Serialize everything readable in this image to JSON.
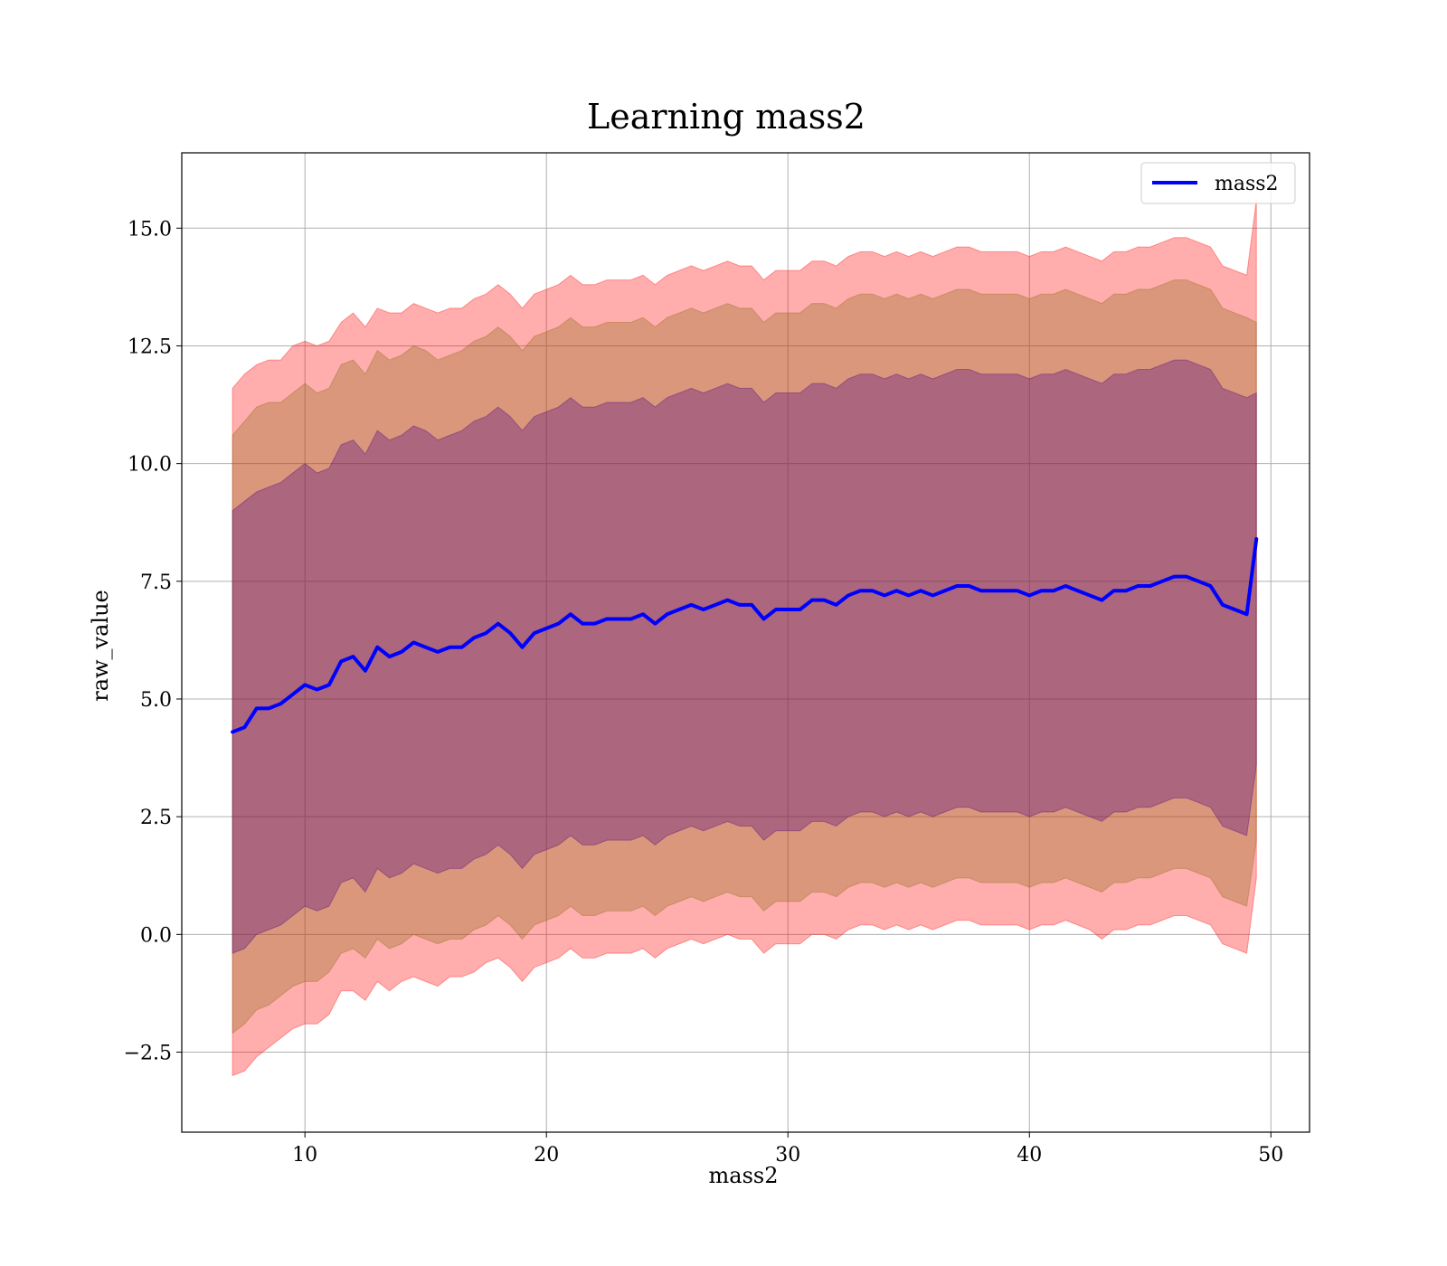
{
  "chart_data": {
    "type": "line",
    "title": "Learning mass2",
    "xlabel": "mass2",
    "ylabel": "raw_value",
    "xlim": [
      4.9,
      51.6
    ],
    "ylim": [
      -4.2,
      16.6
    ],
    "xticks": [
      10,
      20,
      30,
      40,
      50
    ],
    "xtick_labels": [
      "10",
      "20",
      "30",
      "40",
      "50"
    ],
    "yticks": [
      -2.5,
      0.0,
      2.5,
      5.0,
      7.5,
      10.0,
      12.5,
      15.0
    ],
    "ytick_labels": [
      "−2.5",
      "0.0",
      "2.5",
      "5.0",
      "7.5",
      "10.0",
      "12.5",
      "15.0"
    ],
    "grid": true,
    "legend": {
      "position": "top-right",
      "entries": [
        "mass2"
      ]
    },
    "series": [
      {
        "name": "mass2",
        "color": "#0000ff",
        "x": [
          7.0,
          7.5,
          8.0,
          8.5,
          9.0,
          9.5,
          10.0,
          10.5,
          11.0,
          11.5,
          12.0,
          12.5,
          13.0,
          13.5,
          14.0,
          14.5,
          15.0,
          15.5,
          16.0,
          16.5,
          17.0,
          17.5,
          18.0,
          18.5,
          19.0,
          19.5,
          20.0,
          20.5,
          21.0,
          21.5,
          22.0,
          22.5,
          23.0,
          23.5,
          24.0,
          24.5,
          25.0,
          25.5,
          26.0,
          26.5,
          27.0,
          27.5,
          28.0,
          28.5,
          29.0,
          29.5,
          30.0,
          30.5,
          31.0,
          31.5,
          32.0,
          32.5,
          33.0,
          33.5,
          34.0,
          34.5,
          35.0,
          35.5,
          36.0,
          36.5,
          37.0,
          37.5,
          38.0,
          38.5,
          39.0,
          39.5,
          40.0,
          40.5,
          41.0,
          41.5,
          42.0,
          42.5,
          43.0,
          43.5,
          44.0,
          44.5,
          45.0,
          45.5,
          46.0,
          46.5,
          47.0,
          47.5,
          48.0,
          48.5,
          49.0,
          49.4
        ],
        "y": [
          4.3,
          4.4,
          4.8,
          4.8,
          4.9,
          5.1,
          5.3,
          5.2,
          5.3,
          5.8,
          5.9,
          5.6,
          6.1,
          5.9,
          6.0,
          6.2,
          6.1,
          6.0,
          6.1,
          6.1,
          6.3,
          6.4,
          6.6,
          6.4,
          6.1,
          6.4,
          6.5,
          6.6,
          6.8,
          6.6,
          6.6,
          6.7,
          6.7,
          6.7,
          6.8,
          6.6,
          6.8,
          6.9,
          7.0,
          6.9,
          7.0,
          7.1,
          7.0,
          7.0,
          6.7,
          6.9,
          6.9,
          6.9,
          7.1,
          7.1,
          7.0,
          7.2,
          7.3,
          7.3,
          7.2,
          7.3,
          7.2,
          7.3,
          7.2,
          7.3,
          7.4,
          7.4,
          7.3,
          7.3,
          7.3,
          7.3,
          7.2,
          7.3,
          7.3,
          7.4,
          7.3,
          7.2,
          7.1,
          7.3,
          7.3,
          7.4,
          7.4,
          7.5,
          7.6,
          7.6,
          7.5,
          7.4,
          7.0,
          6.9,
          6.8,
          8.4
        ],
        "band_outer_upper": [
          11.6,
          11.9,
          12.1,
          12.2,
          12.2,
          12.5,
          12.6,
          12.5,
          12.6,
          13.0,
          13.2,
          12.9,
          13.3,
          13.2,
          13.2,
          13.4,
          13.3,
          13.2,
          13.3,
          13.3,
          13.5,
          13.6,
          13.8,
          13.6,
          13.3,
          13.6,
          13.7,
          13.8,
          14.0,
          13.8,
          13.8,
          13.9,
          13.9,
          13.9,
          14.0,
          13.8,
          14.0,
          14.1,
          14.2,
          14.1,
          14.2,
          14.3,
          14.2,
          14.2,
          13.9,
          14.1,
          14.1,
          14.1,
          14.3,
          14.3,
          14.2,
          14.4,
          14.5,
          14.5,
          14.4,
          14.5,
          14.4,
          14.5,
          14.4,
          14.5,
          14.6,
          14.6,
          14.5,
          14.5,
          14.5,
          14.5,
          14.4,
          14.5,
          14.5,
          14.6,
          14.5,
          14.4,
          14.3,
          14.5,
          14.5,
          14.6,
          14.6,
          14.7,
          14.8,
          14.8,
          14.7,
          14.6,
          14.2,
          14.1,
          14.0,
          15.6
        ],
        "band_outer_lower": [
          -3.0,
          -2.9,
          -2.6,
          -2.4,
          -2.2,
          -2.0,
          -1.9,
          -1.9,
          -1.7,
          -1.2,
          -1.2,
          -1.4,
          -1.0,
          -1.2,
          -1.0,
          -0.9,
          -1.0,
          -1.1,
          -0.9,
          -0.9,
          -0.8,
          -0.6,
          -0.5,
          -0.7,
          -1.0,
          -0.7,
          -0.6,
          -0.5,
          -0.3,
          -0.5,
          -0.5,
          -0.4,
          -0.4,
          -0.4,
          -0.3,
          -0.5,
          -0.3,
          -0.2,
          -0.1,
          -0.2,
          -0.1,
          0.0,
          -0.1,
          -0.1,
          -0.4,
          -0.2,
          -0.2,
          -0.2,
          0.0,
          0.0,
          -0.1,
          0.1,
          0.2,
          0.2,
          0.1,
          0.2,
          0.1,
          0.2,
          0.1,
          0.2,
          0.3,
          0.3,
          0.2,
          0.2,
          0.2,
          0.2,
          0.1,
          0.2,
          0.2,
          0.3,
          0.2,
          0.1,
          -0.1,
          0.1,
          0.1,
          0.2,
          0.2,
          0.3,
          0.4,
          0.4,
          0.3,
          0.2,
          -0.2,
          -0.3,
          -0.4,
          1.2
        ],
        "band_mid_upper": [
          10.6,
          10.9,
          11.2,
          11.3,
          11.3,
          11.5,
          11.7,
          11.5,
          11.6,
          12.1,
          12.2,
          11.9,
          12.4,
          12.2,
          12.3,
          12.5,
          12.4,
          12.2,
          12.3,
          12.4,
          12.6,
          12.7,
          12.9,
          12.7,
          12.4,
          12.7,
          12.8,
          12.9,
          13.1,
          12.9,
          12.9,
          13.0,
          13.0,
          13.0,
          13.1,
          12.9,
          13.1,
          13.2,
          13.3,
          13.2,
          13.3,
          13.4,
          13.3,
          13.3,
          13.0,
          13.2,
          13.2,
          13.2,
          13.4,
          13.4,
          13.3,
          13.5,
          13.6,
          13.6,
          13.5,
          13.6,
          13.5,
          13.6,
          13.5,
          13.6,
          13.7,
          13.7,
          13.6,
          13.6,
          13.6,
          13.6,
          13.5,
          13.6,
          13.6,
          13.7,
          13.6,
          13.5,
          13.4,
          13.6,
          13.6,
          13.7,
          13.7,
          13.8,
          13.9,
          13.9,
          13.8,
          13.7,
          13.3,
          13.2,
          13.1,
          13.0
        ],
        "band_mid_lower": [
          -2.1,
          -1.9,
          -1.6,
          -1.5,
          -1.3,
          -1.1,
          -1.0,
          -1.0,
          -0.8,
          -0.4,
          -0.3,
          -0.5,
          -0.1,
          -0.3,
          -0.2,
          0.0,
          -0.1,
          -0.2,
          -0.1,
          -0.1,
          0.1,
          0.2,
          0.4,
          0.2,
          -0.1,
          0.2,
          0.3,
          0.4,
          0.6,
          0.4,
          0.4,
          0.5,
          0.5,
          0.5,
          0.6,
          0.4,
          0.6,
          0.7,
          0.8,
          0.7,
          0.8,
          0.9,
          0.8,
          0.8,
          0.5,
          0.7,
          0.7,
          0.7,
          0.9,
          0.9,
          0.8,
          1.0,
          1.1,
          1.1,
          1.0,
          1.1,
          1.0,
          1.1,
          1.0,
          1.1,
          1.2,
          1.2,
          1.1,
          1.1,
          1.1,
          1.1,
          1.0,
          1.1,
          1.1,
          1.2,
          1.1,
          1.0,
          0.9,
          1.1,
          1.1,
          1.2,
          1.2,
          1.3,
          1.4,
          1.4,
          1.3,
          1.2,
          0.8,
          0.7,
          0.6,
          2.0
        ],
        "band_inner_upper": [
          9.0,
          9.2,
          9.4,
          9.5,
          9.6,
          9.8,
          10.0,
          9.8,
          9.9,
          10.4,
          10.5,
          10.2,
          10.7,
          10.5,
          10.6,
          10.8,
          10.7,
          10.5,
          10.6,
          10.7,
          10.9,
          11.0,
          11.2,
          11.0,
          10.7,
          11.0,
          11.1,
          11.2,
          11.4,
          11.2,
          11.2,
          11.3,
          11.3,
          11.3,
          11.4,
          11.2,
          11.4,
          11.5,
          11.6,
          11.5,
          11.6,
          11.7,
          11.6,
          11.6,
          11.3,
          11.5,
          11.5,
          11.5,
          11.7,
          11.7,
          11.6,
          11.8,
          11.9,
          11.9,
          11.8,
          11.9,
          11.8,
          11.9,
          11.8,
          11.9,
          12.0,
          12.0,
          11.9,
          11.9,
          11.9,
          11.9,
          11.8,
          11.9,
          11.9,
          12.0,
          11.9,
          11.8,
          11.7,
          11.9,
          11.9,
          12.0,
          12.0,
          12.1,
          12.2,
          12.2,
          12.1,
          12.0,
          11.6,
          11.5,
          11.4,
          11.5
        ],
        "band_inner_lower": [
          -0.4,
          -0.3,
          0.0,
          0.1,
          0.2,
          0.4,
          0.6,
          0.5,
          0.6,
          1.1,
          1.2,
          0.9,
          1.4,
          1.2,
          1.3,
          1.5,
          1.4,
          1.3,
          1.4,
          1.4,
          1.6,
          1.7,
          1.9,
          1.7,
          1.4,
          1.7,
          1.8,
          1.9,
          2.1,
          1.9,
          1.9,
          2.0,
          2.0,
          2.0,
          2.1,
          1.9,
          2.1,
          2.2,
          2.3,
          2.2,
          2.3,
          2.4,
          2.3,
          2.3,
          2.0,
          2.2,
          2.2,
          2.2,
          2.4,
          2.4,
          2.3,
          2.5,
          2.6,
          2.6,
          2.5,
          2.6,
          2.5,
          2.6,
          2.5,
          2.6,
          2.7,
          2.7,
          2.6,
          2.6,
          2.6,
          2.6,
          2.5,
          2.6,
          2.6,
          2.7,
          2.6,
          2.5,
          2.4,
          2.6,
          2.6,
          2.7,
          2.7,
          2.8,
          2.9,
          2.9,
          2.8,
          2.7,
          2.3,
          2.2,
          2.1,
          3.6
        ]
      }
    ],
    "colors": {
      "line": "#0000ff",
      "band_outer": "#ff0000",
      "band_mid": "#8b6914",
      "band_inner": "#4b0082",
      "grid": "#b0b0b0"
    }
  }
}
